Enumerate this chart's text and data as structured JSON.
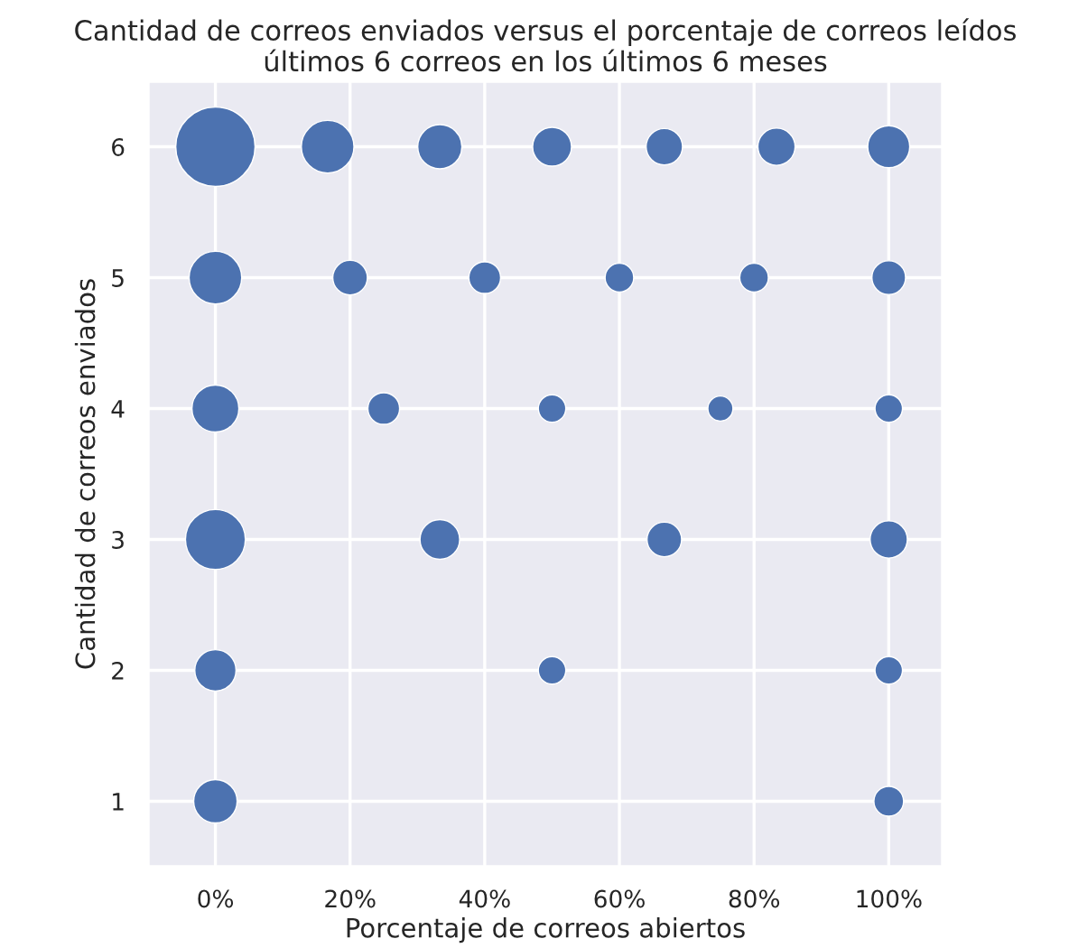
{
  "chart_data": {
    "type": "bubble",
    "title": "Cantidad de correos enviados versus el porcentaje de correos leídos\núltimos 6 correos en los últimos 6 meses",
    "xlabel": "Porcentaje de correos abiertos",
    "ylabel": "Cantidad de correos enviados",
    "xlim": [
      -10,
      108
    ],
    "ylim": [
      0.5,
      6.5
    ],
    "xticks": [
      {
        "value": 0,
        "label": "0%"
      },
      {
        "value": 20,
        "label": "20%"
      },
      {
        "value": 40,
        "label": "40%"
      },
      {
        "value": 60,
        "label": "60%"
      },
      {
        "value": 80,
        "label": "80%"
      },
      {
        "value": 100,
        "label": "100%"
      }
    ],
    "yticks": [
      1,
      2,
      3,
      4,
      5,
      6
    ],
    "grid": true,
    "marker": "circle",
    "series": [
      {
        "color": "#4c72b0",
        "x": [
          0,
          16.67,
          33.33,
          50,
          66.67,
          83.33,
          100,
          0,
          20,
          40,
          60,
          80,
          100,
          0,
          25,
          50,
          75,
          100,
          0,
          33.33,
          66.67,
          100,
          0,
          50,
          100,
          0,
          100
        ],
        "values": [
          6,
          6,
          6,
          6,
          6,
          6,
          6,
          5,
          5,
          5,
          5,
          5,
          5,
          4,
          4,
          4,
          4,
          4,
          3,
          3,
          3,
          3,
          2,
          2,
          2,
          1,
          1
        ],
        "sizes": [
          1,
          0.44,
          0.31,
          0.24,
          0.21,
          0.22,
          0.28,
          0.44,
          0.19,
          0.16,
          0.13,
          0.13,
          0.18,
          0.35,
          0.16,
          0.12,
          0.1,
          0.12,
          0.57,
          0.25,
          0.19,
          0.22,
          0.27,
          0.12,
          0.12,
          0.3,
          0.14
        ]
      }
    ]
  }
}
